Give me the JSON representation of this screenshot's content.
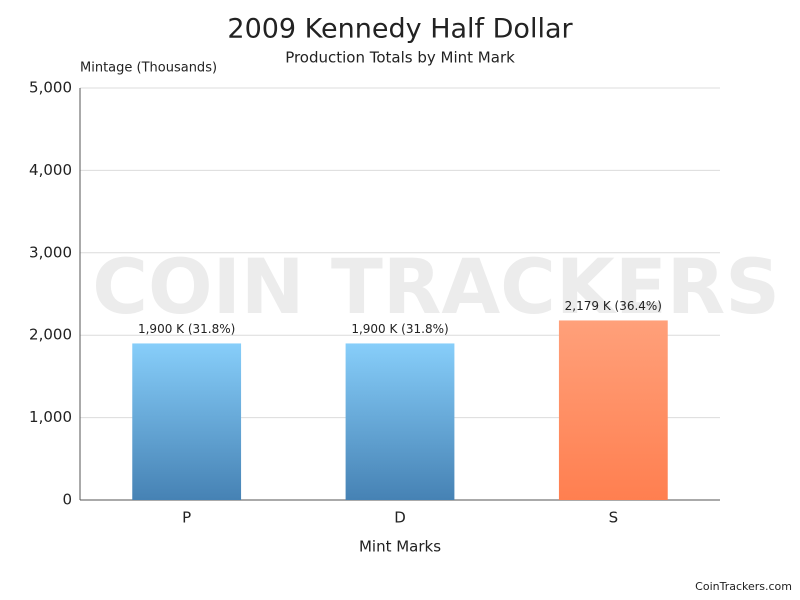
{
  "chart_data": {
    "type": "bar",
    "title": "2009 Kennedy Half Dollar",
    "subtitle": "Production Totals by Mint Mark",
    "y_axis_label": "Mintage (Thousands)",
    "x_axis_label": "Mint Marks",
    "categories": [
      "P",
      "D",
      "S"
    ],
    "values": [
      1900,
      1900,
      2179
    ],
    "value_labels": [
      "1,900 K (31.8%)",
      "1,900 K (31.8%)",
      "2,179 K (36.4%)"
    ],
    "colors": [
      [
        "#87cefa",
        "#4682b4"
      ],
      [
        "#87cefa",
        "#4682b4"
      ],
      [
        "#ffa07a",
        "#ff7f50"
      ]
    ],
    "ylim": [
      0,
      5000
    ],
    "yticks": [
      0,
      {
        "value": 1000,
        "label": "1,000"
      },
      {
        "value": 2000,
        "label": "2,000"
      },
      {
        "value": 3000,
        "label": "3,000"
      },
      {
        "value": 4000,
        "label": "4,000"
      },
      {
        "value": 5000,
        "label": "5,000"
      }
    ],
    "grid": true,
    "watermark": "COIN TRACKERS",
    "credit": "CoinTrackers.com"
  }
}
